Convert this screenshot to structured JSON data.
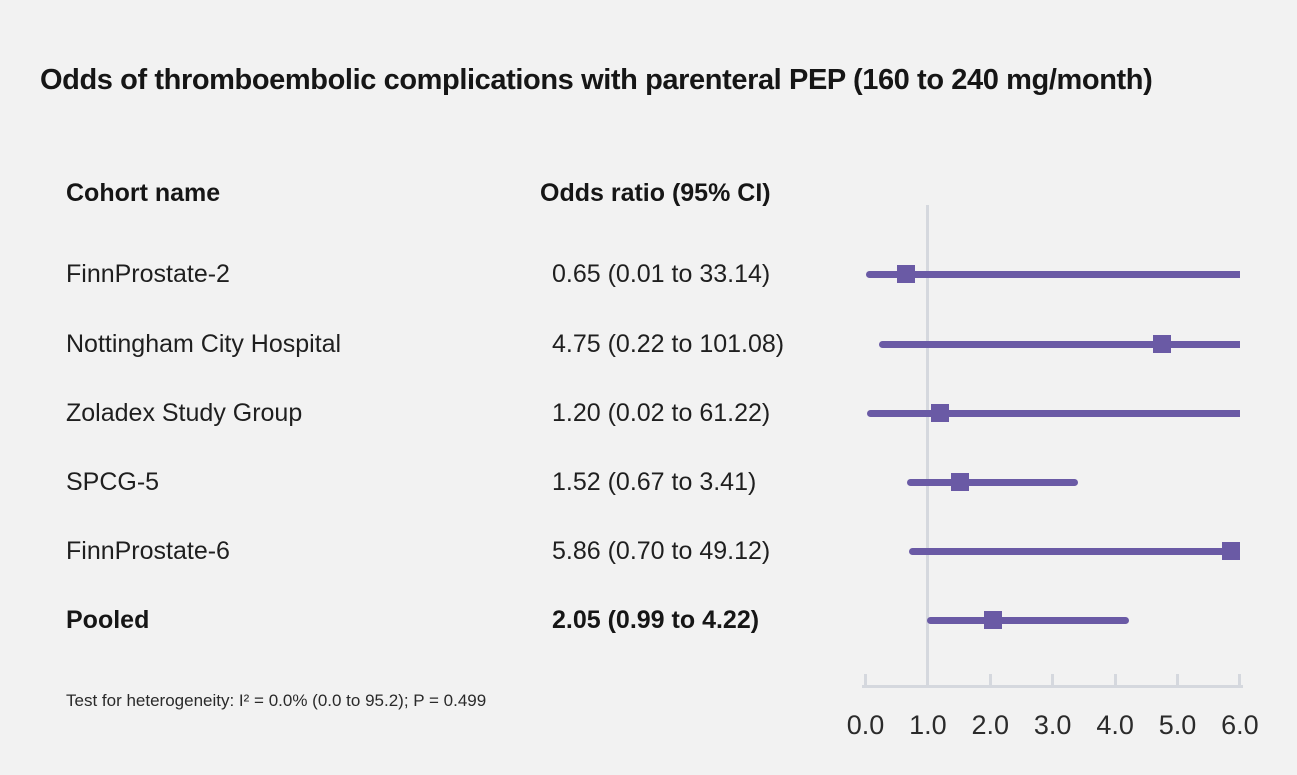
{
  "title": "Odds of thromboembolic complications with parenteral PEP (160 to 240 mg/month)",
  "table": {
    "col_cohort": "Cohort name",
    "col_or": "Odds ratio (95% CI)",
    "rows": [
      {
        "name": "FinnProstate-2",
        "or_text": "0.65 (0.01 to 33.14)"
      },
      {
        "name": "Nottingham City Hospital",
        "or_text": "4.75 (0.22 to 101.08)"
      },
      {
        "name": "Zoladex Study Group",
        "or_text": "1.20 (0.02 to 61.22)"
      },
      {
        "name": "SPCG-5",
        "or_text": "1.52 (0.67 to 3.41)"
      },
      {
        "name": "FinnProstate-6",
        "or_text": "5.86 (0.70 to 49.12)"
      },
      {
        "name": "Pooled",
        "or_text": "2.05 (0.99 to 4.22)"
      }
    ]
  },
  "footnote": "Test for heterogeneity: I² = 0.0% (0.0 to 95.2); P = 0.499",
  "chart_data": {
    "type": "scatter",
    "subtype": "forest-plot",
    "title": "Odds of thromboembolic complications with parenteral PEP (160 to 240 mg/month)",
    "xlabel": "Odds ratio",
    "xlim": [
      0,
      6
    ],
    "x_ticks": [
      0,
      1,
      2,
      3,
      4,
      5,
      6
    ],
    "x_tick_labels": [
      "0.0",
      "1.0",
      "2.0",
      "3.0",
      "4.0",
      "5.0",
      "6.0"
    ],
    "reference_line_x": 1.0,
    "grid": false,
    "points": [
      {
        "label": "FinnProstate-2",
        "or": 0.65,
        "ci_low": 0.01,
        "ci_high": 33.14,
        "pooled": false
      },
      {
        "label": "Nottingham City Hospital",
        "or": 4.75,
        "ci_low": 0.22,
        "ci_high": 101.08,
        "pooled": false
      },
      {
        "label": "Zoladex Study Group",
        "or": 1.2,
        "ci_low": 0.02,
        "ci_high": 61.22,
        "pooled": false
      },
      {
        "label": "SPCG-5",
        "or": 1.52,
        "ci_low": 0.67,
        "ci_high": 3.41,
        "pooled": false
      },
      {
        "label": "FinnProstate-6",
        "or": 5.86,
        "ci_low": 0.7,
        "ci_high": 49.12,
        "pooled": false
      },
      {
        "label": "Pooled",
        "or": 2.05,
        "ci_low": 0.99,
        "ci_high": 4.22,
        "pooled": true
      }
    ],
    "heterogeneity": {
      "I2_percent": 0.0,
      "I2_ci": [
        0.0,
        95.2
      ],
      "p_value": 0.499
    },
    "colors": {
      "marker": "#6a5aa5",
      "ci_line": "#6a5aa5",
      "axis": "#d5d8de",
      "reference_line": "#d5d8de",
      "background": "#f2f2f2",
      "text": "#1a1a1a"
    }
  }
}
